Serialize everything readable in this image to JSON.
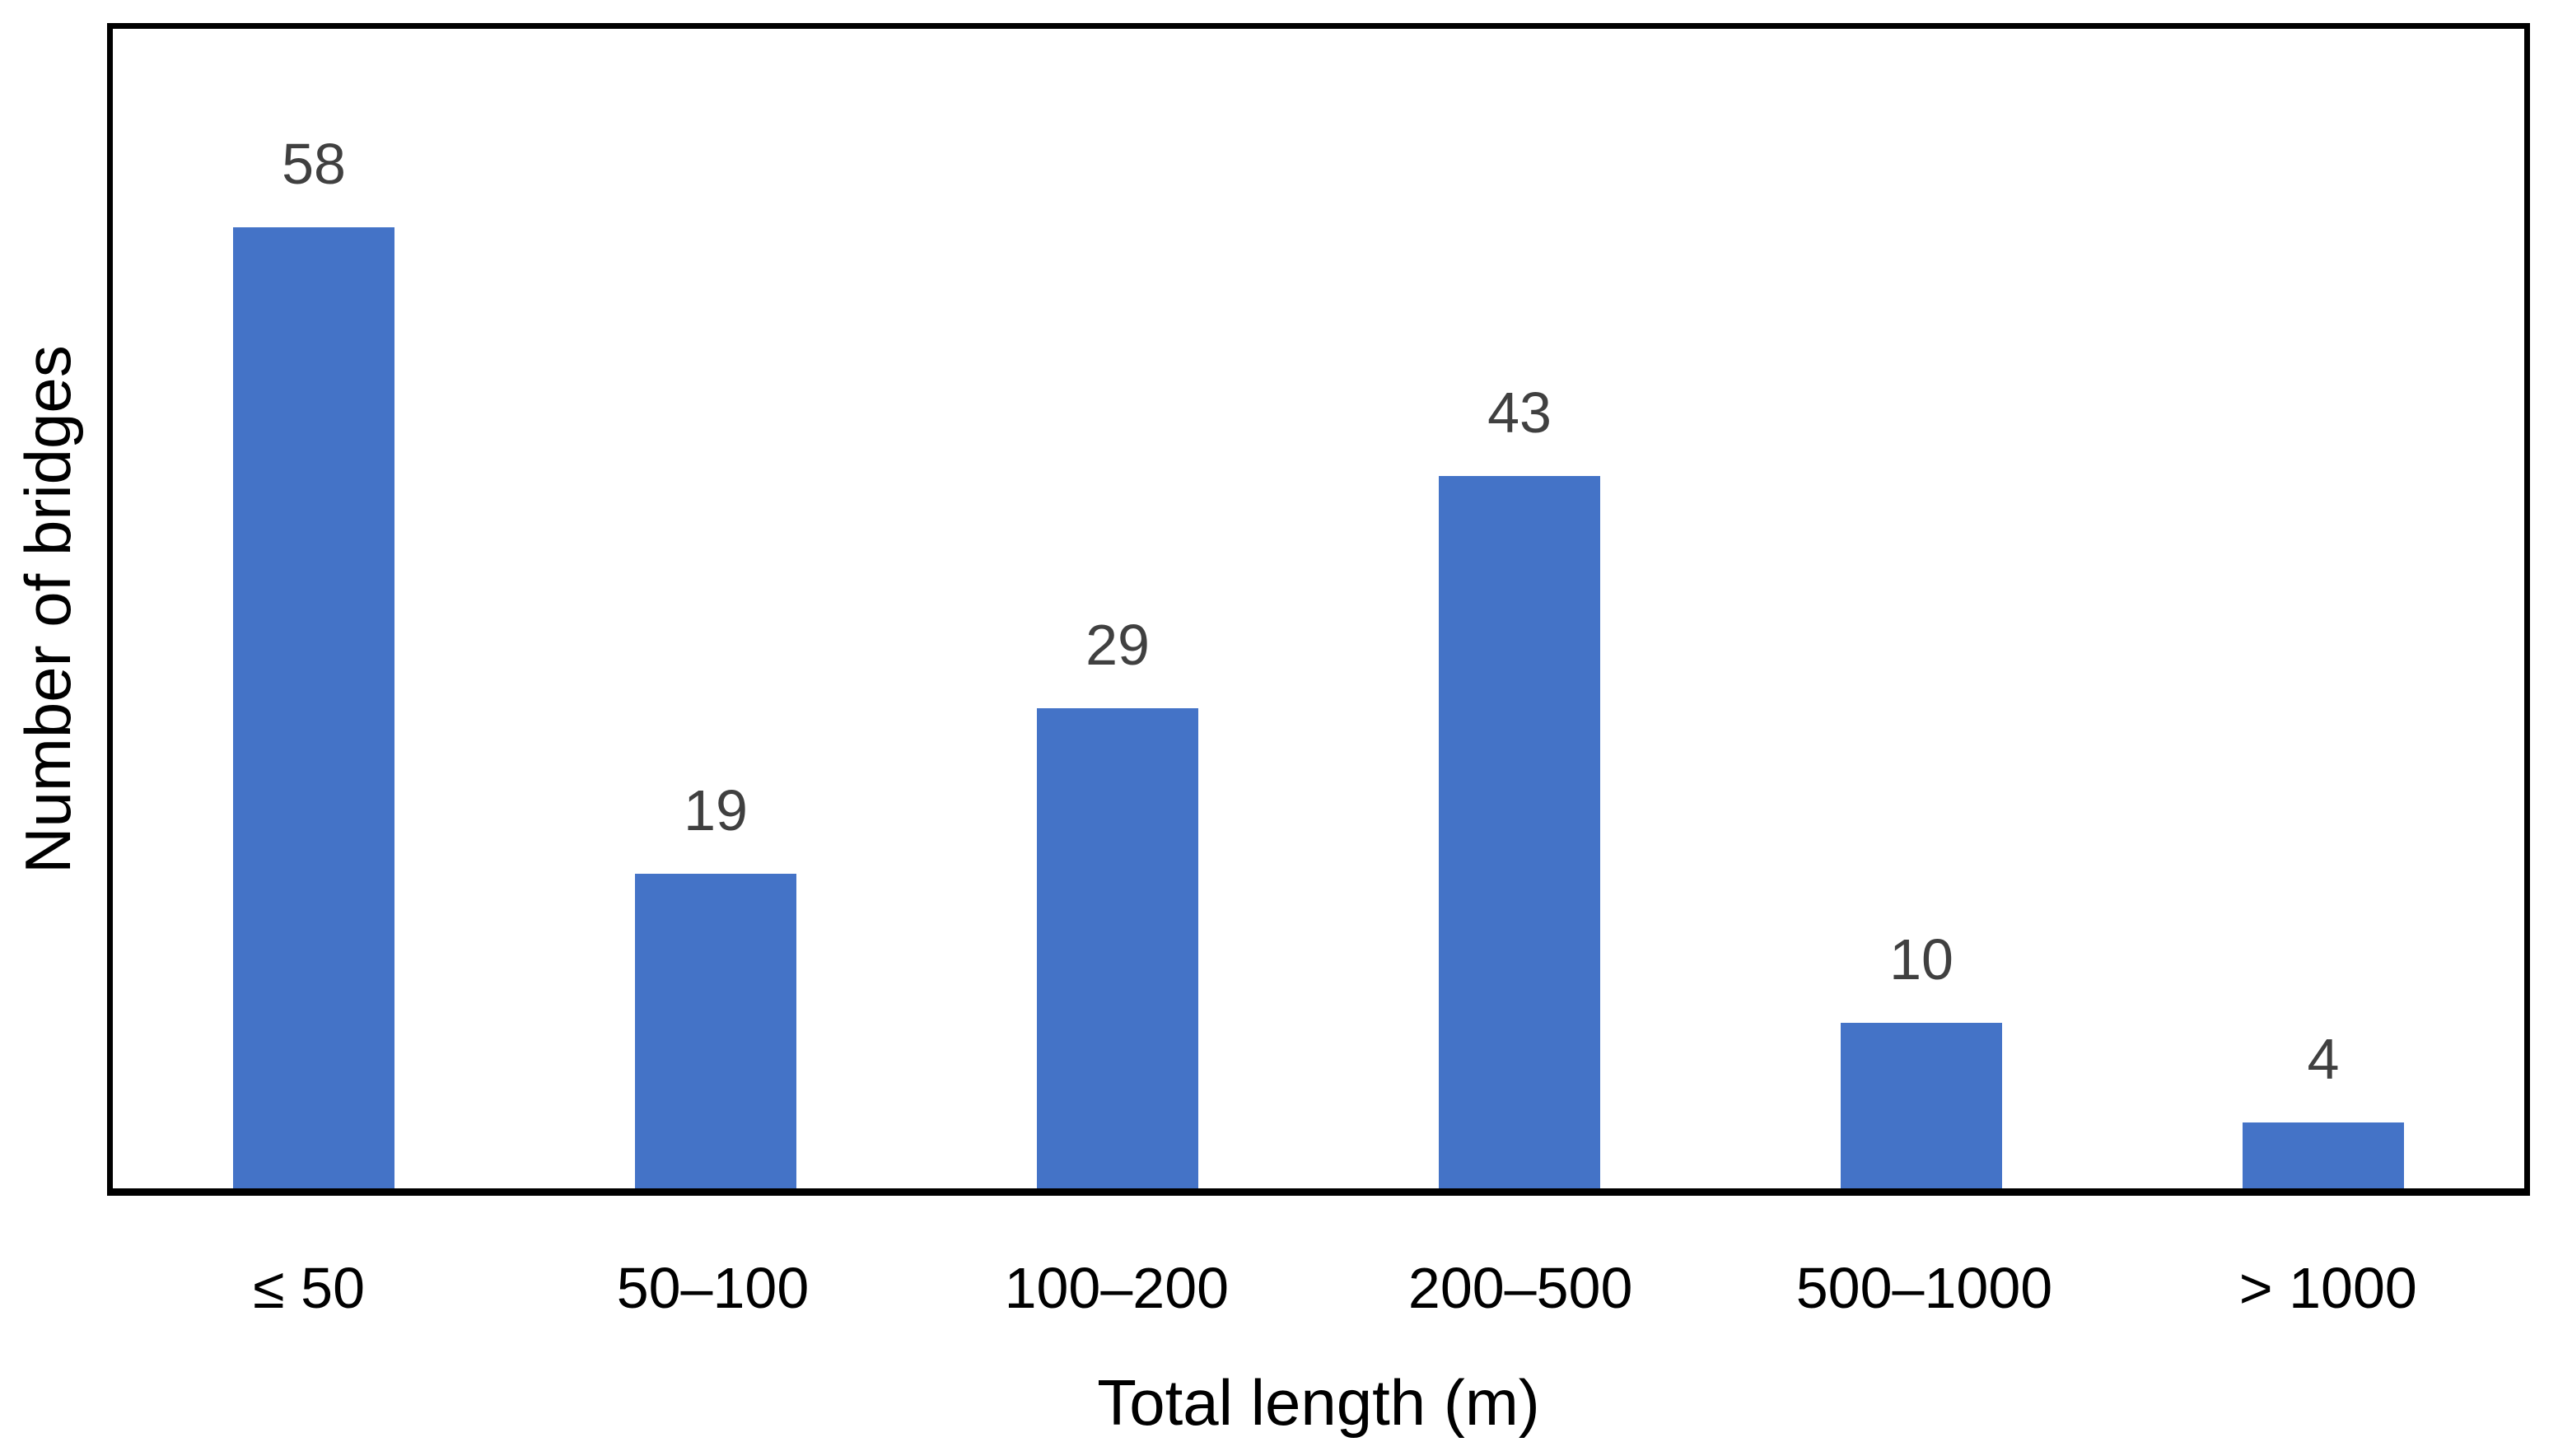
{
  "chart_data": {
    "type": "bar",
    "categories": [
      "≤ 50",
      "50–100",
      "100–200",
      "200–500",
      "500–1000",
      "> 1000"
    ],
    "values": [
      58,
      19,
      29,
      43,
      10,
      4
    ],
    "title": "",
    "xlabel": "Total length (m)",
    "ylabel": "Number of bridges",
    "ylim": [
      0,
      70
    ],
    "grid": false,
    "legend": false,
    "data_labels_shown": true,
    "y_tick_labels_shown": false,
    "bar_color": "#4473C7",
    "data_label_color": "#404040",
    "axis_label_color": "#000000",
    "frame_color": "#000000",
    "background_color": "#ffffff"
  }
}
